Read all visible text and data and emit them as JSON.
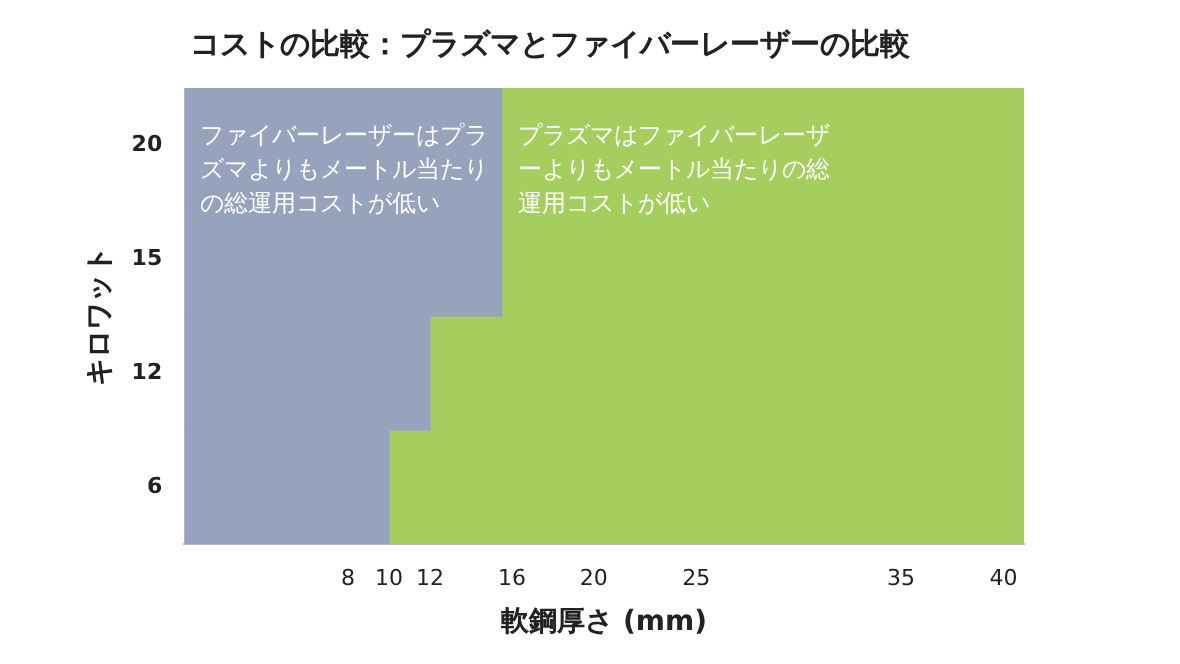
{
  "chart_data": {
    "type": "bar",
    "orientation": "horizontal",
    "stacked": true,
    "title": "コストの比較：プラズマとファイバーレーザーの比較",
    "xlabel": "軟鋼厚さ (mm)",
    "ylabel": "キロワット",
    "categories": [
      "20",
      "15",
      "12",
      "6"
    ],
    "series": [
      {
        "color": "#97a3bd",
        "values": [
          15.5,
          15.5,
          12,
          10
        ]
      },
      {
        "color": "#a6ce5f",
        "values": [
          25.5,
          25.5,
          29,
          31
        ]
      }
    ],
    "xlim": [
      0,
      41
    ],
    "xticks": [
      8,
      10,
      12,
      16,
      20,
      25,
      35,
      40
    ],
    "grid": false,
    "legend": false,
    "annotations": [
      "ファイバーレーザーはプラズマよりもメートル当たりの総運用コストが低い",
      "プラズマはファイバーレーザーよりもメートル当たりの総運用コストが低い"
    ]
  }
}
